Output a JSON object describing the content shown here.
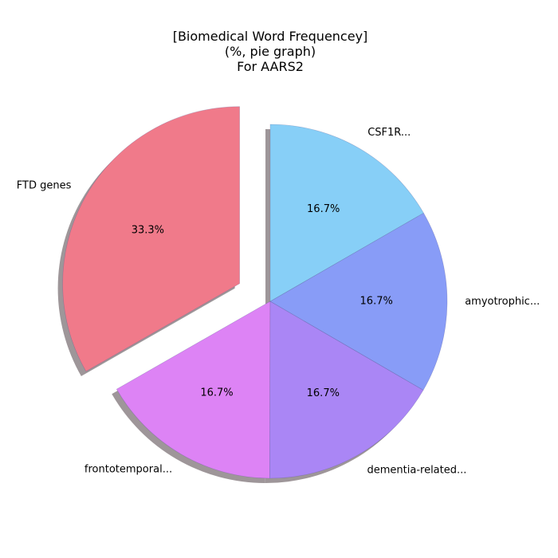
{
  "chart_data": {
    "type": "pie",
    "title_lines": [
      "[Biomedical Word Frequencey]",
      "(%, pie graph)",
      "For AARS2"
    ],
    "slices": [
      {
        "label": "FTD genes",
        "value": 33.3,
        "pct_text": "33.3%",
        "color": "#f07a8a",
        "exploded": true
      },
      {
        "label": "frontotemporal...",
        "value": 16.7,
        "pct_text": "16.7%",
        "color": "#dd83f5",
        "exploded": false
      },
      {
        "label": "dementia-related...",
        "value": 16.7,
        "pct_text": "16.7%",
        "color": "#aa86f5",
        "exploded": false
      },
      {
        "label": "amyotrophic...",
        "value": 16.7,
        "pct_text": "16.7%",
        "color": "#889cf7",
        "exploded": false
      },
      {
        "label": "CSF1R...",
        "value": 16.7,
        "pct_text": "16.7%",
        "color": "#87cff7",
        "exploded": false
      }
    ],
    "start_angle_deg": 90,
    "direction": "counterclockwise",
    "shadow": true,
    "shadow_color": "#9e9699"
  }
}
